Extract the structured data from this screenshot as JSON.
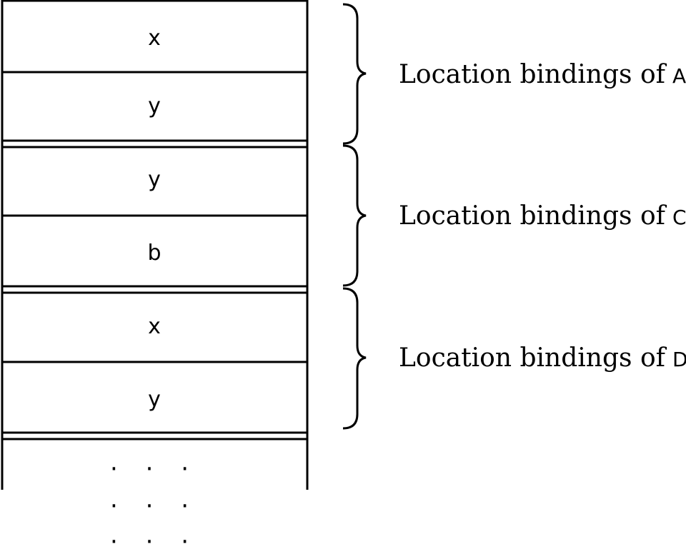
{
  "stack": {
    "groups": [
      {
        "cells": [
          "x",
          "y"
        ],
        "label_prefix": "Location bindings of",
        "label_var": "A"
      },
      {
        "cells": [
          "y",
          "b"
        ],
        "label_prefix": "Location bindings of",
        "label_var": "C"
      },
      {
        "cells": [
          "x",
          "y"
        ],
        "label_prefix": "Location bindings of",
        "label_var": "D"
      }
    ],
    "ellipsis": [
      "· · ·",
      "· · ·",
      "· · ·"
    ]
  }
}
